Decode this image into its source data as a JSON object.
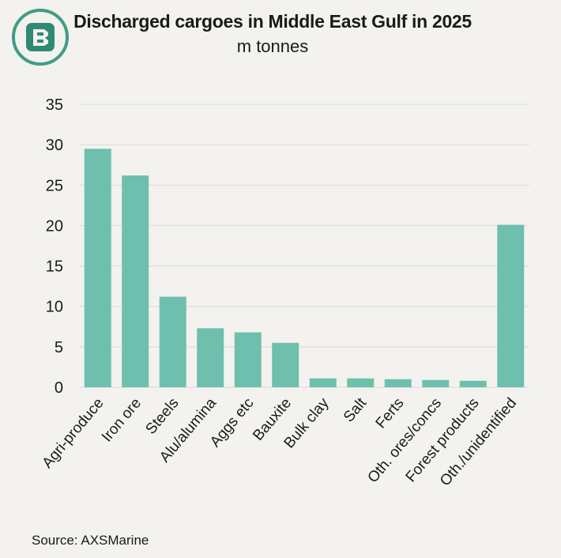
{
  "source": "Source: AXSMarine",
  "colors": {
    "bar": "#6fbfae",
    "grid": "#d9d9d6",
    "logo_ring": "#3f9c86",
    "logo_fill": "#2f8a74"
  },
  "chart_data": {
    "type": "bar",
    "title": "Discharged cargoes in Middle East Gulf in 2025",
    "subtitle": "m tonnes",
    "categories": [
      "Agri-produce",
      "Iron ore",
      "Steels",
      "Alu/alumina",
      "Aggs etc",
      "Bauxite",
      "Bulk clay",
      "Salt",
      "Ferts",
      "Oth. ores/concs",
      "Forest products",
      "Oth./unidentified"
    ],
    "values": [
      29.5,
      26.2,
      11.2,
      7.3,
      6.8,
      5.5,
      1.1,
      1.1,
      1.0,
      0.9,
      0.8,
      20.1
    ],
    "ylim": [
      0,
      35
    ],
    "yticks": [
      0,
      5,
      10,
      15,
      20,
      25,
      30,
      35
    ],
    "xlabel": "",
    "ylabel": "",
    "grid": true
  }
}
